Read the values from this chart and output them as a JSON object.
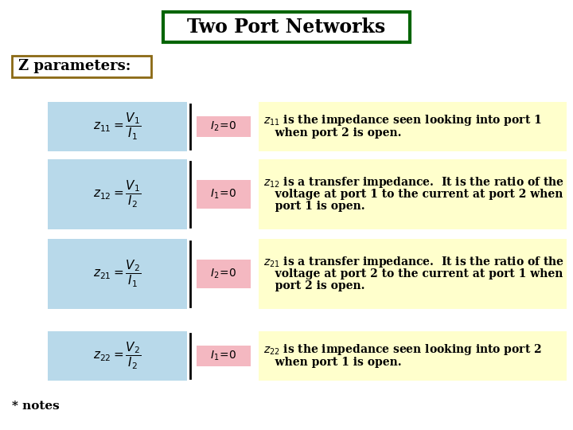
{
  "title": "Two Port Networks",
  "title_bg": "#ffffff",
  "title_border": "#006400",
  "subtitle": "Z parameters:",
  "subtitle_border": "#8B6914",
  "bg_color": "#ffffff",
  "rows": [
    {
      "formula_left_tex": "$z_{11}=\\dfrac{V_1}{I_1}$",
      "formula_right_tex": "$I_2\\!=\\!0$",
      "formula_left_bg": "#b8d9ea",
      "formula_right_bg": "#f4b8c1",
      "description_bg": "#ffffcc",
      "description_lines": [
        "$z_{11}$ is the impedance seen looking into port 1",
        "   when port 2 is open."
      ]
    },
    {
      "formula_left_tex": "$z_{12}=\\dfrac{V_1}{I_2}$",
      "formula_right_tex": "$I_1\\!=\\!0$",
      "formula_left_bg": "#b8d9ea",
      "formula_right_bg": "#f4b8c1",
      "description_bg": "#ffffcc",
      "description_lines": [
        "$z_{12}$ is a transfer impedance.  It is the ratio of the",
        "   voltage at port 1 to the current at port 2 when",
        "   port 1 is open."
      ]
    },
    {
      "formula_left_tex": "$z_{21}=\\dfrac{V_2}{I_1}$",
      "formula_right_tex": "$I_2\\!=\\!0$",
      "formula_left_bg": "#b8d9ea",
      "formula_right_bg": "#f4b8c1",
      "description_bg": "#ffffcc",
      "description_lines": [
        "$z_{21}$ is a transfer impedance.  It is the ratio of the",
        "   voltage at port 2 to the current at port 1 when",
        "   port 2 is open."
      ]
    },
    {
      "formula_left_tex": "$z_{22}=\\dfrac{V_2}{I_2}$",
      "formula_right_tex": "$I_1\\!=\\!0$",
      "formula_left_bg": "#b8d9ea",
      "formula_right_bg": "#f4b8c1",
      "description_bg": "#ffffcc",
      "description_lines": [
        "$z_{22}$ is the impedance seen looking into port 2",
        "   when port 1 is open."
      ]
    }
  ],
  "footnote": "* notes"
}
